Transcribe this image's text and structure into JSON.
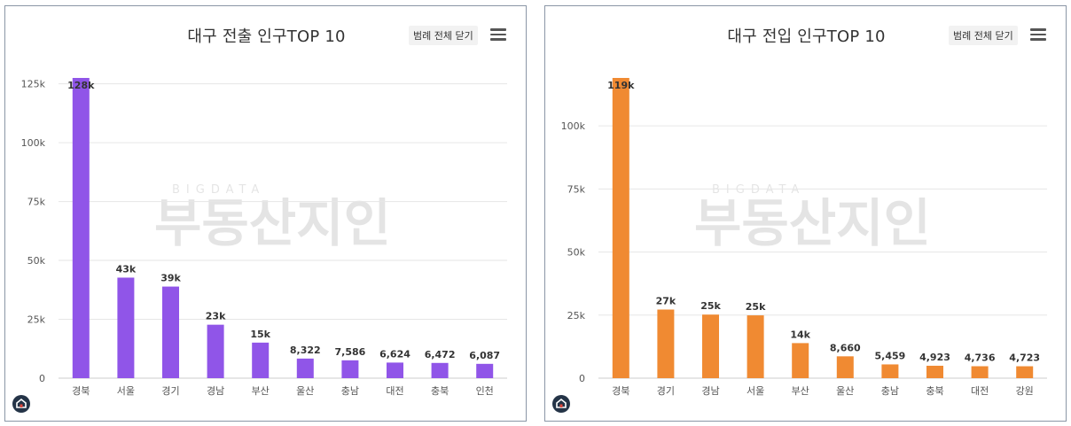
{
  "charts": [
    {
      "title": "대구 전출 인구TOP 10",
      "legend_toggle_label": "범례 전체 닫기",
      "menu_icon": "hamburger-menu-icon",
      "logo_icon": "home-logo-icon",
      "watermark": {
        "small": "BIGDATA",
        "big": "부동산지인"
      }
    },
    {
      "title": "대구 전입 인구TOP 10",
      "legend_toggle_label": "범례 전체 닫기",
      "menu_icon": "hamburger-menu-icon",
      "logo_icon": "home-logo-icon",
      "watermark": {
        "small": "BIGDATA",
        "big": "부동산지인"
      }
    }
  ],
  "chart_data": [
    {
      "type": "bar",
      "title": "대구 전출 인구TOP 10",
      "color": "#9055e8",
      "categories": [
        "경북",
        "서울",
        "경기",
        "경남",
        "부산",
        "울산",
        "충남",
        "대전",
        "충북",
        "인천"
      ],
      "values": [
        127500,
        42700,
        38900,
        22700,
        15100,
        8322,
        7586,
        6624,
        6472,
        6087
      ],
      "data_labels": [
        "128k",
        "43k",
        "39k",
        "23k",
        "15k",
        "8,322",
        "7,586",
        "6,624",
        "6,472",
        "6,087"
      ],
      "yticks": [
        0,
        25000,
        50000,
        75000,
        100000,
        125000
      ],
      "ytick_labels": [
        "0",
        "25k",
        "50k",
        "75k",
        "100k",
        "125k"
      ],
      "ylim": [
        0,
        127500
      ],
      "grid": true
    },
    {
      "type": "bar",
      "title": "대구 전입 인구TOP 10",
      "color": "#f08a32",
      "categories": [
        "경북",
        "경기",
        "경남",
        "서울",
        "부산",
        "울산",
        "충남",
        "충북",
        "대전",
        "강원"
      ],
      "values": [
        119000,
        27200,
        25200,
        24900,
        13900,
        8660,
        5459,
        4923,
        4736,
        4723
      ],
      "data_labels": [
        "119k",
        "27k",
        "25k",
        "25k",
        "14k",
        "8,660",
        "5,459",
        "4,923",
        "4,736",
        "4,723"
      ],
      "yticks": [
        0,
        25000,
        50000,
        75000,
        100000
      ],
      "ytick_labels": [
        "0",
        "25k",
        "50k",
        "75k",
        "100k"
      ],
      "ylim": [
        0,
        119000
      ],
      "grid": true
    }
  ]
}
